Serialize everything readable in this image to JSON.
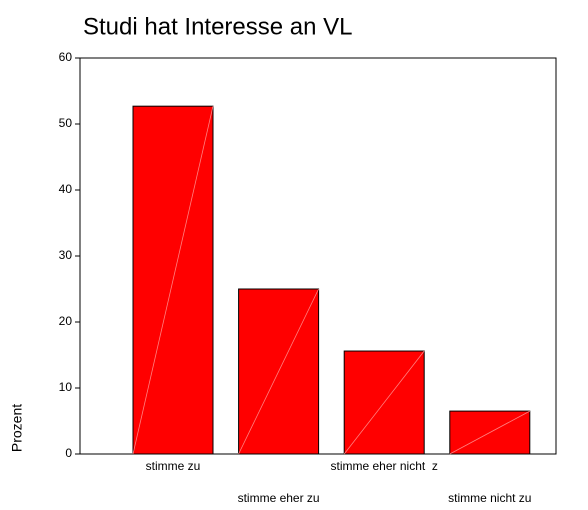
{
  "chart_data": {
    "type": "bar",
    "title": "Studi hat Interesse an VL",
    "y_label": "Prozent",
    "categories": [
      "stimme zu",
      "stimme eher zu",
      "stimme eher nicht  z",
      "stimme nicht zu"
    ],
    "values": [
      52.7,
      25.0,
      15.6,
      6.5
    ],
    "color": "#ff0000",
    "ylim": [
      0,
      60
    ],
    "yticks": [
      0,
      10,
      20,
      30,
      40,
      50,
      60
    ]
  }
}
